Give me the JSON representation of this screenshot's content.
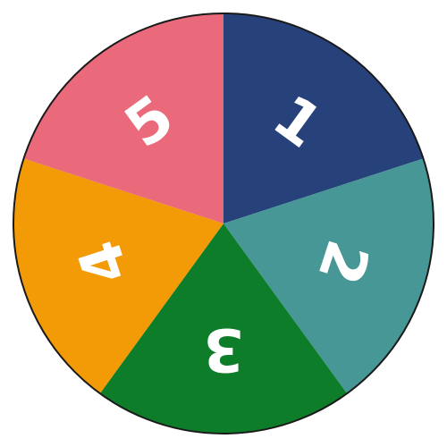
{
  "spinner": {
    "segments": [
      {
        "label": "1",
        "color": "#27417A"
      },
      {
        "label": "2",
        "color": "#469796"
      },
      {
        "label": "3",
        "color": "#0E7D29"
      },
      {
        "label": "4",
        "color": "#F39A07"
      },
      {
        "label": "5",
        "color": "#EA6A7B"
      }
    ],
    "border_color": "#1a1a1a"
  }
}
